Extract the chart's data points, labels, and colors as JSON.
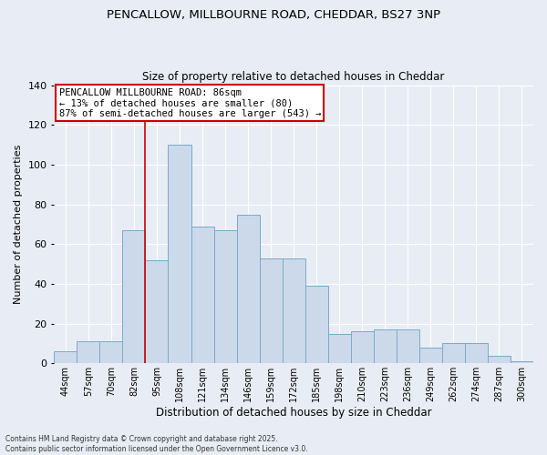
{
  "title_line1": "PENCALLOW, MILLBOURNE ROAD, CHEDDAR, BS27 3NP",
  "title_line2": "Size of property relative to detached houses in Cheddar",
  "xlabel": "Distribution of detached houses by size in Cheddar",
  "ylabel": "Number of detached properties",
  "categories": [
    "44sqm",
    "57sqm",
    "70sqm",
    "82sqm",
    "95sqm",
    "108sqm",
    "121sqm",
    "134sqm",
    "146sqm",
    "159sqm",
    "172sqm",
    "185sqm",
    "198sqm",
    "210sqm",
    "223sqm",
    "236sqm",
    "249sqm",
    "262sqm",
    "274sqm",
    "287sqm",
    "300sqm"
  ],
  "values": [
    6,
    11,
    11,
    67,
    52,
    110,
    69,
    67,
    75,
    53,
    53,
    39,
    15,
    16,
    17,
    17,
    8,
    10,
    10,
    4,
    1
  ],
  "bar_color": "#ccd9ea",
  "bar_edge_color": "#7aaac8",
  "bg_color": "#e8edf5",
  "grid_color": "#ffffff",
  "vline_x": 3.5,
  "vline_color": "#cc0000",
  "annotation_text": "PENCALLOW MILLBOURNE ROAD: 86sqm\n← 13% of detached houses are smaller (80)\n87% of semi-detached houses are larger (543) →",
  "annotation_box_color": "#cc0000",
  "ylim": [
    0,
    140
  ],
  "yticks": [
    0,
    20,
    40,
    60,
    80,
    100,
    120,
    140
  ],
  "footnote": "Contains HM Land Registry data © Crown copyright and database right 2025.\nContains public sector information licensed under the Open Government Licence v3.0."
}
